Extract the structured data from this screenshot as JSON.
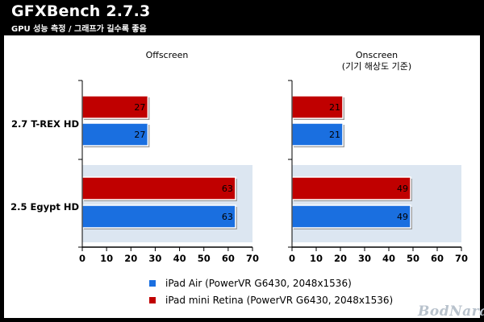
{
  "title": "GFXBench 2.7.3",
  "subtitle": "GPU 성능 측정 / 그래프가 길수록 좋음",
  "watermark": "BodNara",
  "colors": {
    "series_air": "#1a6fe0",
    "series_mini": "#c00000",
    "highlight_band": "#dce6f1",
    "axis": "#000000"
  },
  "chart_data": {
    "type": "bar",
    "orientation": "horizontal",
    "categories": [
      "2.7 T-REX HD",
      "2.5 Egypt HD"
    ],
    "xlim": [
      0,
      70
    ],
    "xticks": [
      0,
      10,
      20,
      30,
      40,
      50,
      60,
      70
    ],
    "grid": false,
    "legend_position": "bottom",
    "panels": [
      {
        "title": "Offscreen",
        "subtitle": "",
        "series": [
          {
            "name": "iPad mini Retina (PowerVR G6430, 2048x1536)",
            "color": "#c00000",
            "values": [
              27,
              63
            ]
          },
          {
            "name": "iPad Air (PowerVR G6430, 2048x1536)",
            "color": "#1a6fe0",
            "values": [
              27,
              63
            ]
          }
        ]
      },
      {
        "title": "Onscreen",
        "subtitle": "(기기 해상도 기준)",
        "series": [
          {
            "name": "iPad mini Retina (PowerVR G6430, 2048x1536)",
            "color": "#c00000",
            "values": [
              21,
              49
            ]
          },
          {
            "name": "iPad Air (PowerVR G6430, 2048x1536)",
            "color": "#1a6fe0",
            "values": [
              21,
              49
            ]
          }
        ]
      }
    ],
    "legend": [
      {
        "name": "iPad Air (PowerVR G6430, 2048x1536)",
        "color": "#1a6fe0"
      },
      {
        "name": "iPad mini Retina (PowerVR G6430, 2048x1536)",
        "color": "#c00000"
      }
    ]
  }
}
